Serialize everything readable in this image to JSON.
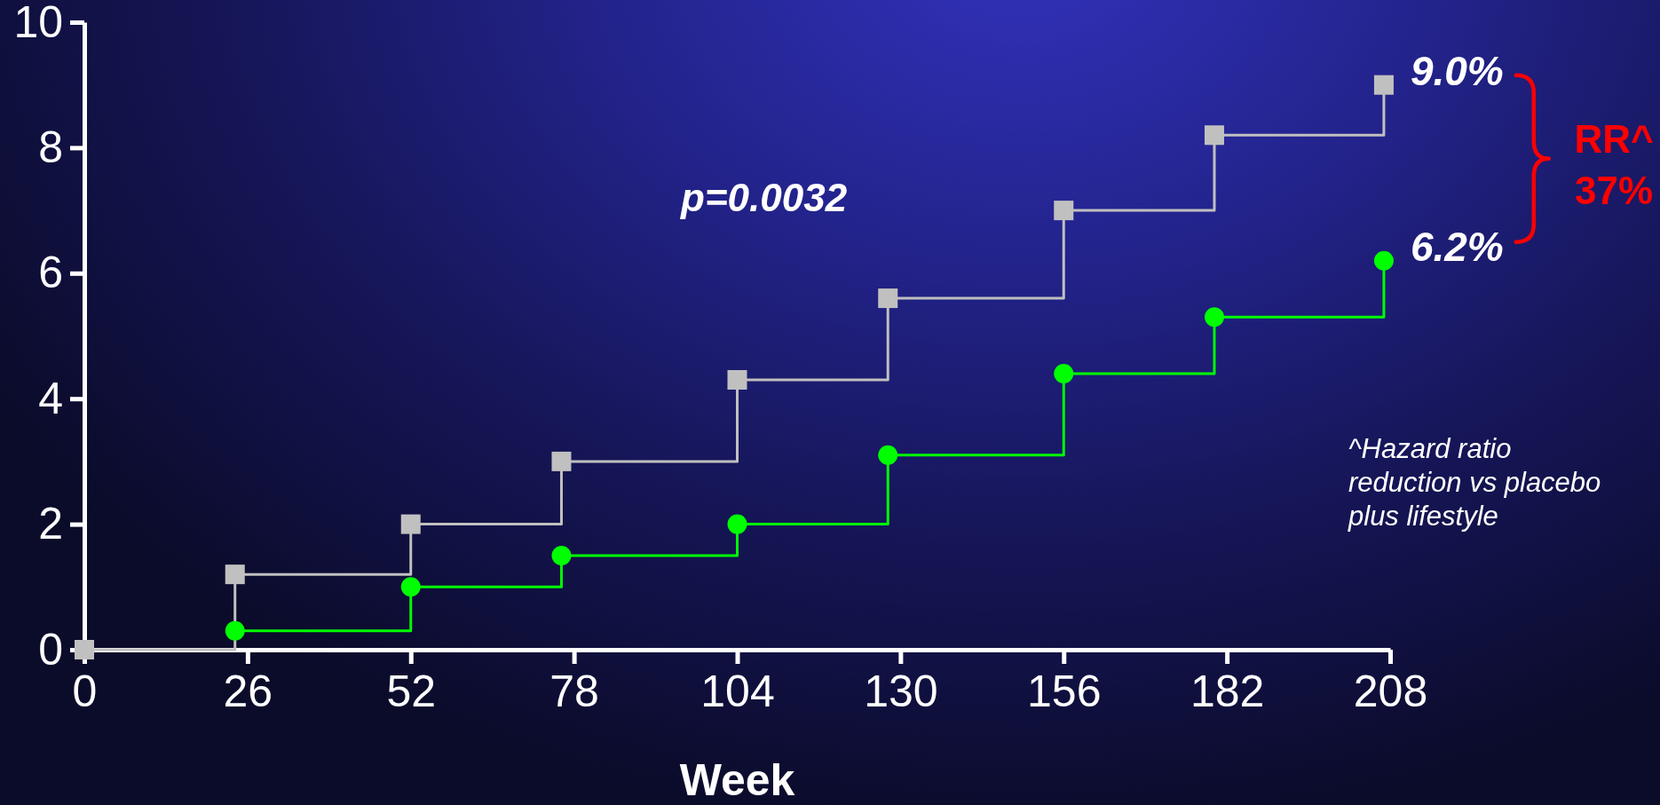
{
  "chart_data": {
    "type": "step",
    "xlabel": "Week",
    "xlim": [
      0,
      208
    ],
    "xticks": [
      0,
      26,
      52,
      78,
      104,
      130,
      156,
      182,
      208
    ],
    "ylim": [
      0,
      10
    ],
    "yticks": [
      0,
      2,
      4,
      6,
      8,
      10
    ],
    "series": [
      {
        "color": "#c0c0c0",
        "marker": "square",
        "x": [
          0,
          24,
          52,
          76,
          104,
          128,
          156,
          180,
          207
        ],
        "values": [
          0,
          1.2,
          2.0,
          3.0,
          4.3,
          5.6,
          7.0,
          8.2,
          9.0
        ]
      },
      {
        "color": "#00ff00",
        "marker": "circle",
        "x": [
          24,
          52,
          76,
          104,
          128,
          156,
          180,
          207
        ],
        "values": [
          0.3,
          1.0,
          1.5,
          2.0,
          3.1,
          4.4,
          5.3,
          6.2
        ]
      }
    ],
    "annotations": [
      "p=0.0032",
      {
        "text": "9.0%",
        "x": 207,
        "y": 9.0
      },
      {
        "text": "6.2%",
        "x": 207,
        "y": 6.2
      },
      "RR^ 37%",
      "^Hazard ratio reduction vs placebo plus lifestyle"
    ]
  }
}
